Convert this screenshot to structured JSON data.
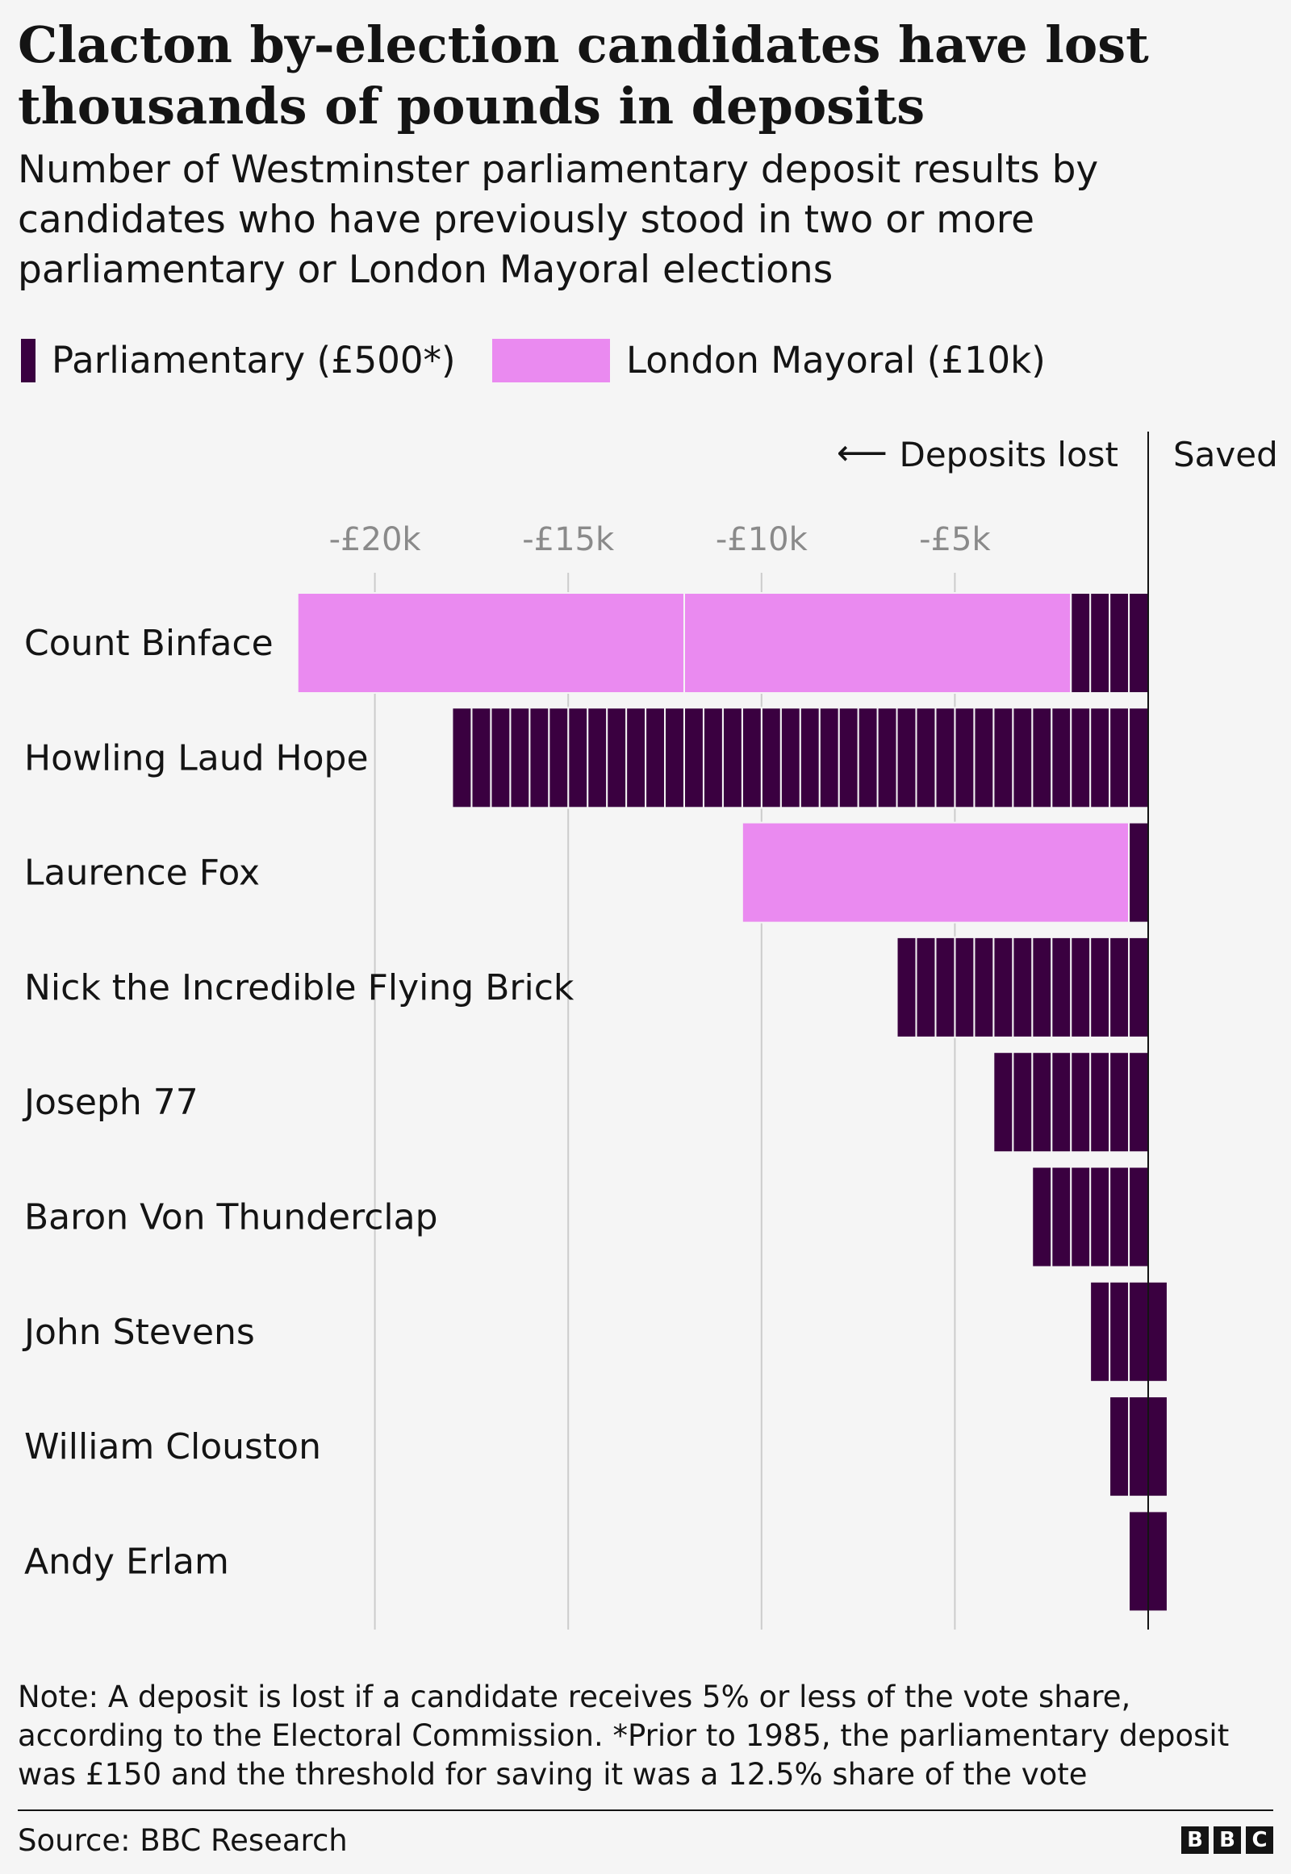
{
  "title": "Clacton by-election candidates have lost thousands of pounds in deposits",
  "subtitle": "Number of Westminster parliamentary deposit results by candidates who have previously stood in two or more parliamentary or London Mayoral elections",
  "legend": [
    {
      "label": "Parliamentary (£500*)",
      "color": "#3a0040"
    },
    {
      "label": "London Mayoral (£10k)",
      "color": "#ea8af0"
    }
  ],
  "direction": {
    "lost_label": "Deposits lost",
    "arrow": "⟵",
    "saved_label": "Saved"
  },
  "note": "Note: A deposit is lost if a candidate receives 5% or less of the vote share, according to the Electoral Commission. *Prior to 1985, the parliamentary deposit was £150 and the threshold for saving it was a 12.5% share of the vote",
  "source": "Source: BBC Research",
  "logo": [
    "B",
    "B",
    "C"
  ],
  "chart_data": {
    "type": "bar",
    "orientation": "horizontal",
    "title": "Clacton by-election candidates have lost thousands of pounds in deposits",
    "xlim": [
      -22000,
      650
    ],
    "ticks": [
      {
        "value": -20000,
        "label": "-£20k"
      },
      {
        "value": -15000,
        "label": "-£15k"
      },
      {
        "value": -10000,
        "label": "-£10k"
      },
      {
        "value": -5000,
        "label": "-£5k"
      }
    ],
    "grid": true,
    "legend_position": "top",
    "categories": [
      "Count Binface",
      "Howling Laud Hope",
      "Laurence Fox",
      "Nick the Incredible Flying Brick",
      "Joseph 77",
      "Baron Von Thunderclap",
      "John Stevens",
      "William Clouston",
      "Andy Erlam"
    ],
    "series": [
      {
        "name": "Parliamentary (£500*)",
        "color": "#3a0040",
        "deposit_value": 500,
        "lost_counts": [
          4,
          36,
          1,
          13,
          8,
          6,
          3,
          2,
          1
        ],
        "saved_counts": [
          0,
          0,
          0,
          0,
          0,
          0,
          1,
          1,
          1
        ]
      },
      {
        "name": "London Mayoral (£10k)",
        "color": "#ea8af0",
        "deposit_value": 10000,
        "lost_counts": [
          2,
          0,
          1,
          0,
          0,
          0,
          0,
          0,
          0
        ],
        "saved_counts": [
          0,
          0,
          0,
          0,
          0,
          0,
          0,
          0,
          0
        ]
      }
    ],
    "values_lost": [
      -22000,
      -18000,
      -10500,
      -6500,
      -4000,
      -3000,
      -1500,
      -1000,
      -500
    ],
    "values_saved": [
      0,
      0,
      0,
      0,
      0,
      0,
      500,
      500,
      500
    ]
  }
}
